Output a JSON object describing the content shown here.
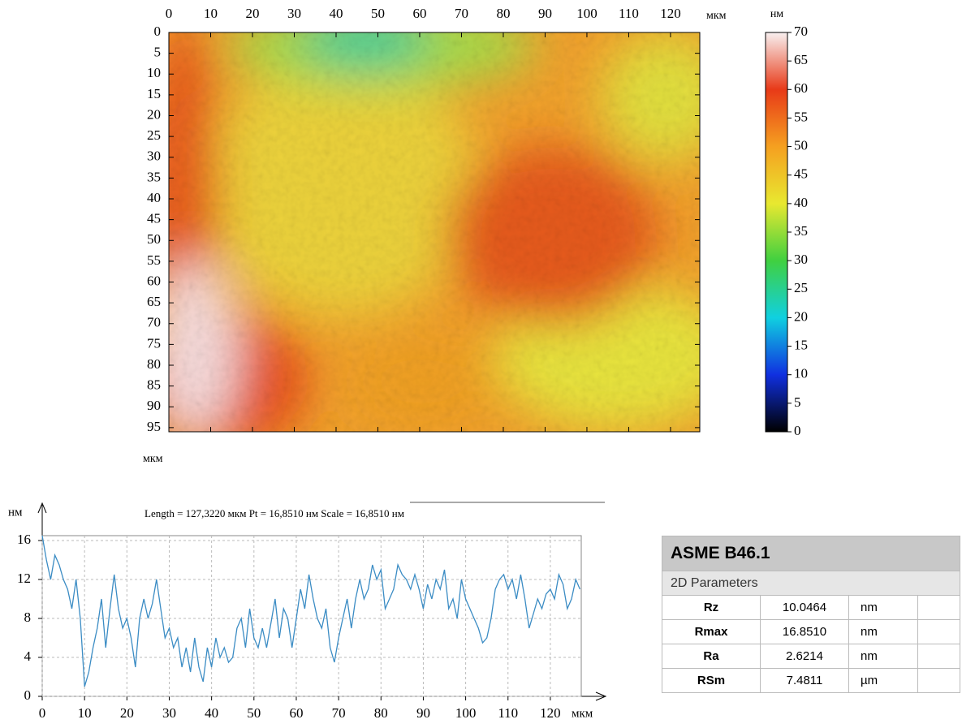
{
  "chart_data": [
    {
      "type": "heatmap",
      "x_unit": "мкм",
      "y_unit": "мкм",
      "xlim": [
        0,
        127
      ],
      "ylim": [
        0,
        96
      ],
      "y_inverted": true,
      "xticks": [
        0,
        10,
        20,
        30,
        40,
        50,
        60,
        70,
        80,
        90,
        100,
        110,
        120
      ],
      "yticks": [
        0,
        5,
        10,
        15,
        20,
        25,
        30,
        35,
        40,
        45,
        50,
        55,
        60,
        65,
        70,
        75,
        80,
        85,
        90,
        95
      ]
    },
    {
      "type": "colorbar",
      "unit": "нм",
      "ylim": [
        0,
        70
      ],
      "yticks": [
        0,
        5,
        10,
        15,
        20,
        25,
        30,
        35,
        40,
        45,
        50,
        55,
        60,
        65,
        70
      ],
      "colors": [
        "#000000",
        "#1030e0",
        "#10d0e0",
        "#40d040",
        "#e8e830",
        "#f5a020",
        "#e83a18",
        "#f8f0f0"
      ]
    },
    {
      "type": "line",
      "title": "Length = 127,3220 мкм  Pt = 16,8510 нм  Scale = 16,8510 нм",
      "x_unit": "мкм",
      "y_unit": "нм",
      "xlim": [
        0,
        127.3
      ],
      "ylim": [
        0,
        16.5
      ],
      "grid": true,
      "color": "#3b8cc4",
      "xticks": [
        0,
        10,
        20,
        30,
        40,
        50,
        60,
        70,
        80,
        90,
        100,
        110,
        120
      ],
      "yticks": [
        0,
        4,
        8,
        12,
        16
      ],
      "x": [
        0,
        1,
        2,
        3,
        4,
        5,
        6,
        7,
        8,
        9,
        10,
        11,
        12,
        13,
        14,
        15,
        16,
        17,
        18,
        19,
        20,
        21,
        22,
        23,
        24,
        25,
        26,
        27,
        28,
        29,
        30,
        31,
        32,
        33,
        34,
        35,
        36,
        37,
        38,
        39,
        40,
        41,
        42,
        43,
        44,
        45,
        46,
        47,
        48,
        49,
        50,
        51,
        52,
        53,
        54,
        55,
        56,
        57,
        58,
        59,
        60,
        61,
        62,
        63,
        64,
        65,
        66,
        67,
        68,
        69,
        70,
        71,
        72,
        73,
        74,
        75,
        76,
        77,
        78,
        79,
        80,
        81,
        82,
        83,
        84,
        85,
        86,
        87,
        88,
        89,
        90,
        91,
        92,
        93,
        94,
        95,
        96,
        97,
        98,
        99,
        100,
        101,
        102,
        103,
        104,
        105,
        106,
        107,
        108,
        109,
        110,
        111,
        112,
        113,
        114,
        115,
        116,
        117,
        118,
        119,
        120,
        121,
        122,
        123,
        124,
        125,
        126,
        127
      ],
      "values": [
        16.5,
        14,
        12,
        14.5,
        13.5,
        12,
        11,
        9,
        12,
        8,
        1,
        2.5,
        5,
        7,
        10,
        5,
        9,
        12.5,
        9,
        7,
        8,
        6,
        3,
        8,
        10,
        8,
        9.5,
        12,
        9,
        6,
        7,
        5,
        6,
        3,
        5,
        2.5,
        6,
        3,
        1.5,
        5,
        3,
        6,
        4,
        5,
        3.5,
        4,
        7,
        8,
        5,
        9,
        6,
        5,
        7,
        5,
        7.5,
        10,
        6,
        9,
        8,
        5,
        8,
        11,
        9,
        12.5,
        10,
        8,
        7,
        9,
        5,
        3.5,
        6,
        8,
        10,
        7,
        10,
        12,
        10,
        11,
        13.5,
        12,
        13,
        9,
        10,
        11,
        13.5,
        12.5,
        12,
        11,
        12.5,
        11,
        9,
        11.5,
        10,
        12,
        11,
        13,
        9,
        10,
        8,
        12,
        10,
        9,
        8,
        7,
        5.5,
        6,
        8,
        11,
        12,
        12.5,
        11,
        12,
        10,
        12.5,
        10,
        7,
        8.5,
        10,
        9,
        10.5,
        11,
        10,
        12.5,
        11.5,
        9,
        10,
        12,
        11
      ]
    }
  ],
  "table": {
    "title": "ASME B46.1",
    "subtitle": "2D Parameters",
    "rows": [
      [
        "Rz",
        "10.0464",
        "nm"
      ],
      [
        "Rmax",
        "16.8510",
        "nm"
      ],
      [
        "Ra",
        "2.6214",
        "nm"
      ],
      [
        "RSm",
        "7.4811",
        "µm"
      ]
    ]
  }
}
